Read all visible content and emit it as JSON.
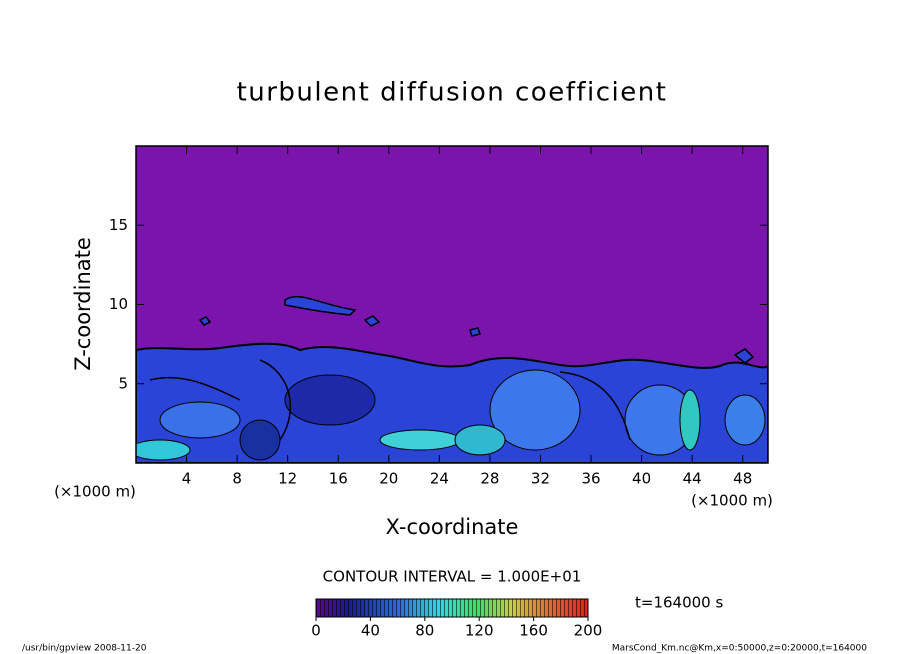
{
  "chart_data": {
    "type": "contour",
    "title": "turbulent diffusion coefficient",
    "xlabel": "X-coordinate",
    "ylabel": "Z-coordinate",
    "x_unit_label": "(×1000 m)",
    "y_unit_label": "(×1000 m)",
    "xlim": [
      0,
      50
    ],
    "xticks": [
      4,
      8,
      12,
      16,
      20,
      24,
      28,
      32,
      36,
      40,
      44,
      48
    ],
    "ylim": [
      0,
      20
    ],
    "yticks": [
      5,
      10,
      15
    ],
    "contour_interval": "CONTOUR INTERVAL = 1.000E+01",
    "time_label": "t=164000 s",
    "colorbar": {
      "lim": [
        0,
        200
      ],
      "ticks": [
        0,
        40,
        80,
        120,
        160,
        200
      ]
    },
    "footer_left": "/usr/bin/gpview   2008-11-20",
    "footer_right": "MarsCond_Km.nc@Km,x=0:50000,z=0:20000,t=164000"
  }
}
